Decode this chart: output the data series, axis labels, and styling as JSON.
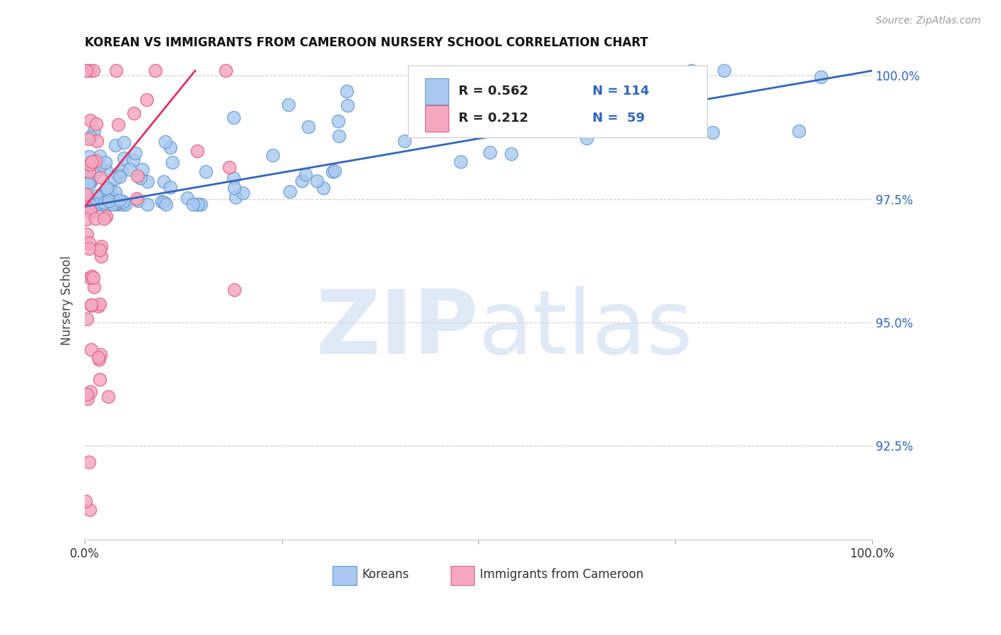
{
  "title": "KOREAN VS IMMIGRANTS FROM CAMEROON NURSERY SCHOOL CORRELATION CHART",
  "source": "Source: ZipAtlas.com",
  "ylabel": "Nursery School",
  "watermark_zip": "ZIP",
  "watermark_atlas": "atlas",
  "x_min": 0.0,
  "x_max": 1.0,
  "y_min": 0.906,
  "y_max": 1.003,
  "y_ticks": [
    0.925,
    0.95,
    0.975,
    1.0
  ],
  "y_tick_labels": [
    "92.5%",
    "95.0%",
    "97.5%",
    "100.0%"
  ],
  "korean_color": "#a8c8f0",
  "korean_edge": "#6699cc",
  "cameroon_color": "#f5a8c0",
  "cameroon_edge": "#dd6688",
  "trend_korean_color": "#3366bb",
  "trend_cameroon_color": "#dd3366",
  "legend_korean_R": "R = 0.562",
  "legend_korean_N": "N = 114",
  "legend_cameroon_R": "R = 0.212",
  "legend_cameroon_N": "N =  59",
  "korean_trend_x0": 0.0,
  "korean_trend_x1": 1.0,
  "korean_trend_y0": 0.9735,
  "korean_trend_y1": 1.001,
  "cameroon_trend_x0": 0.0,
  "cameroon_trend_x1": 0.14,
  "cameroon_trend_y0": 0.9735,
  "cameroon_trend_y1": 1.001
}
